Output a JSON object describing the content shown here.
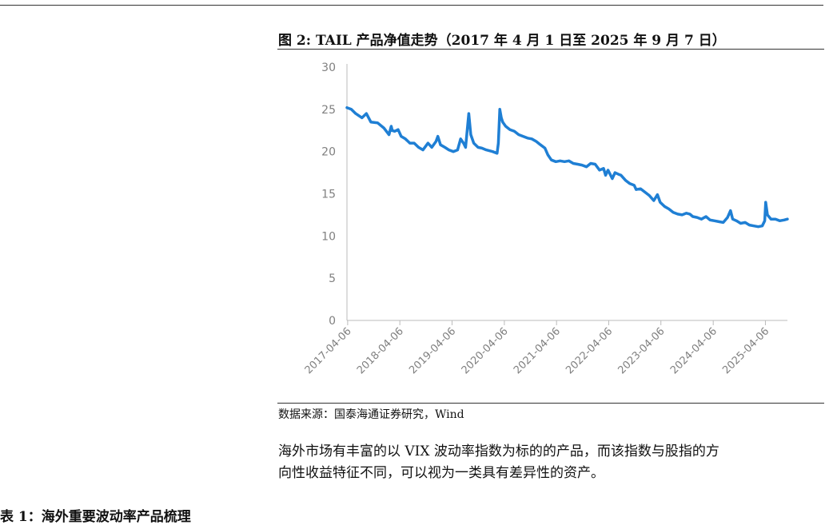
{
  "figure": {
    "title": "图 2:  TAIL 产品净值走势（2017 年 4 月 1 日至 2025 年 9 月 7 日）"
  },
  "source": "数据来源：国泰海通证券研究，Wind",
  "paragraph": [
    "海外市场有丰富的以 VIX 波动率指数为标的的产品，而该指数与股指的方",
    "向性收益特征不同，可以视为一类具有差异性的资产。"
  ],
  "section_heading": "表 1：海外重要波动率产品梳理",
  "colors": {
    "line": "#1f7fd4",
    "axis": "#bbbbbb",
    "tick_text": "#808080"
  },
  "chart_data": {
    "type": "line",
    "title": "",
    "xlabel": "",
    "ylabel": "",
    "ylim": [
      0,
      30
    ],
    "yticks": [
      0,
      5,
      10,
      15,
      20,
      25,
      30
    ],
    "xlim": [
      "2017-04-01",
      "2025-09-07"
    ],
    "xtick_labels": [
      "2017-04-06",
      "2018-04-06",
      "2019-04-06",
      "2020-04-06",
      "2021-04-06",
      "2022-04-06",
      "2023-04-06",
      "2024-04-06",
      "2025-04-06"
    ],
    "grid": false,
    "legend": "none",
    "series": [
      {
        "x": [
          "2017-04-01",
          "2017-05-01",
          "2017-06-01",
          "2017-07-15",
          "2017-08-15",
          "2017-09-15",
          "2017-11-01",
          "2017-12-15",
          "2018-01-20",
          "2018-02-05",
          "2018-02-12",
          "2018-03-01",
          "2018-03-25",
          "2018-04-15",
          "2018-05-15",
          "2018-06-15",
          "2018-07-15",
          "2018-08-15",
          "2018-09-15",
          "2018-10-20",
          "2018-11-15",
          "2018-12-15",
          "2018-12-28",
          "2019-01-15",
          "2019-02-15",
          "2019-03-15",
          "2019-04-15",
          "2019-05-15",
          "2019-06-05",
          "2019-06-25",
          "2019-07-10",
          "2019-08-01",
          "2019-08-15",
          "2019-09-05",
          "2019-10-05",
          "2019-11-01",
          "2019-12-01",
          "2020-01-15",
          "2020-02-15",
          "2020-02-24",
          "2020-03-05",
          "2020-03-16",
          "2020-03-25",
          "2020-04-15",
          "2020-05-15",
          "2020-06-15",
          "2020-07-15",
          "2020-08-15",
          "2020-09-15",
          "2020-10-15",
          "2020-11-15",
          "2020-12-15",
          "2021-01-15",
          "2021-02-05",
          "2021-03-01",
          "2021-04-01",
          "2021-05-01",
          "2021-06-01",
          "2021-07-01",
          "2021-08-01",
          "2021-09-01",
          "2021-10-01",
          "2021-11-01",
          "2021-12-01",
          "2022-01-01",
          "2022-02-01",
          "2022-03-01",
          "2022-03-15",
          "2022-04-01",
          "2022-05-01",
          "2022-05-20",
          "2022-06-15",
          "2022-07-01",
          "2022-08-01",
          "2022-09-01",
          "2022-10-01",
          "2022-10-15",
          "2022-11-15",
          "2022-12-15",
          "2023-01-15",
          "2023-02-15",
          "2023-03-13",
          "2023-04-01",
          "2023-05-01",
          "2023-06-01",
          "2023-07-01",
          "2023-08-01",
          "2023-09-01",
          "2023-10-01",
          "2023-10-25",
          "2023-11-15",
          "2023-12-15",
          "2024-01-15",
          "2024-02-15",
          "2024-03-15",
          "2024-04-15",
          "2024-05-15",
          "2024-06-15",
          "2024-07-15",
          "2024-08-05",
          "2024-08-20",
          "2024-09-15",
          "2024-10-15",
          "2024-11-15",
          "2024-12-15",
          "2025-01-15",
          "2025-02-15",
          "2025-03-15",
          "2025-04-01",
          "2025-04-08",
          "2025-04-20",
          "2025-05-15",
          "2025-06-15",
          "2025-07-15",
          "2025-08-15",
          "2025-09-07"
        ],
        "values": [
          25.2,
          25.0,
          24.5,
          24.0,
          24.5,
          23.5,
          23.4,
          22.8,
          22.0,
          23.0,
          22.5,
          22.4,
          22.6,
          21.8,
          21.5,
          21.0,
          21.0,
          20.5,
          20.2,
          21.0,
          20.5,
          21.2,
          21.8,
          20.8,
          20.5,
          20.2,
          20.0,
          20.2,
          21.5,
          21.0,
          20.5,
          24.5,
          22.0,
          21.0,
          20.5,
          20.4,
          20.2,
          20.0,
          19.8,
          21.0,
          25.0,
          24.0,
          23.5,
          23.0,
          22.6,
          22.4,
          22.0,
          21.8,
          21.6,
          21.5,
          21.2,
          20.8,
          20.4,
          19.6,
          19.0,
          18.8,
          18.9,
          18.8,
          18.9,
          18.6,
          18.5,
          18.4,
          18.2,
          18.6,
          18.5,
          17.8,
          18.0,
          17.2,
          17.8,
          16.8,
          17.5,
          17.3,
          17.2,
          16.6,
          16.2,
          16.0,
          15.5,
          15.6,
          15.2,
          14.8,
          14.2,
          14.9,
          14.0,
          13.5,
          13.2,
          12.8,
          12.6,
          12.5,
          12.7,
          12.6,
          12.3,
          12.2,
          12.0,
          12.3,
          11.9,
          11.8,
          11.7,
          11.6,
          12.2,
          13.0,
          12.0,
          11.8,
          11.5,
          11.6,
          11.3,
          11.2,
          11.1,
          11.2,
          11.8,
          14.0,
          12.5,
          12.0,
          12.0,
          11.8,
          11.9,
          12.0
        ]
      }
    ]
  }
}
